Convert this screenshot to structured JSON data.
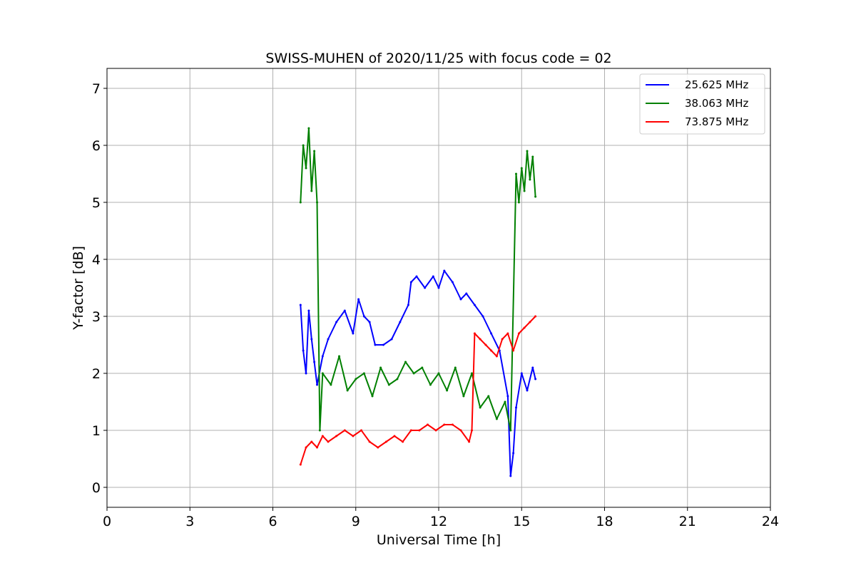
{
  "chart_data": {
    "type": "line",
    "title": "SWISS-MUHEN of 2020/11/25 with focus code = 02",
    "xlabel": "Universal Time [h]",
    "ylabel": "Y-factor [dB]",
    "xlim": [
      0,
      24
    ],
    "ylim": [
      -0.35,
      7.35
    ],
    "xticks": [
      0,
      3,
      6,
      9,
      12,
      15,
      18,
      21,
      24
    ],
    "yticks": [
      0,
      1,
      2,
      3,
      4,
      5,
      6,
      7
    ],
    "grid": true,
    "legend_position": "top-right",
    "series": [
      {
        "name": "25.625 MHz",
        "color": "#0000ff",
        "x": [
          7.0,
          7.1,
          7.2,
          7.3,
          7.4,
          7.5,
          7.6,
          7.8,
          8.0,
          8.3,
          8.6,
          8.9,
          9.1,
          9.3,
          9.5,
          9.7,
          10.0,
          10.3,
          10.6,
          10.9,
          11.0,
          11.2,
          11.5,
          11.8,
          12.0,
          12.2,
          12.5,
          12.8,
          13.0,
          13.3,
          13.6,
          13.9,
          14.2,
          14.5,
          14.6,
          14.7,
          14.8,
          15.0,
          15.2,
          15.4,
          15.5
        ],
        "values": [
          3.2,
          2.4,
          2.0,
          3.1,
          2.6,
          2.2,
          1.8,
          2.3,
          2.6,
          2.9,
          3.1,
          2.7,
          3.3,
          3.0,
          2.9,
          2.5,
          2.5,
          2.6,
          2.9,
          3.2,
          3.6,
          3.7,
          3.5,
          3.7,
          3.5,
          3.8,
          3.6,
          3.3,
          3.4,
          3.2,
          3.0,
          2.7,
          2.4,
          1.6,
          0.2,
          0.6,
          1.4,
          2.0,
          1.7,
          2.1,
          1.9
        ]
      },
      {
        "name": "38.063 MHz",
        "color": "#008000",
        "x": [
          7.0,
          7.1,
          7.2,
          7.3,
          7.4,
          7.5,
          7.6,
          7.7,
          7.8,
          8.1,
          8.4,
          8.7,
          9.0,
          9.3,
          9.6,
          9.9,
          10.2,
          10.5,
          10.8,
          11.1,
          11.4,
          11.7,
          12.0,
          12.3,
          12.6,
          12.9,
          13.2,
          13.5,
          13.8,
          14.1,
          14.4,
          14.6,
          14.8,
          14.9,
          15.0,
          15.1,
          15.2,
          15.3,
          15.4,
          15.5
        ],
        "values": [
          5.0,
          6.0,
          5.6,
          6.3,
          5.2,
          5.9,
          5.0,
          1.0,
          2.0,
          1.8,
          2.3,
          1.7,
          1.9,
          2.0,
          1.6,
          2.1,
          1.8,
          1.9,
          2.2,
          2.0,
          2.1,
          1.8,
          2.0,
          1.7,
          2.1,
          1.6,
          2.0,
          1.4,
          1.6,
          1.2,
          1.5,
          1.0,
          5.5,
          5.0,
          5.6,
          5.2,
          5.9,
          5.4,
          5.8,
          5.1
        ]
      },
      {
        "name": "73.875 MHz",
        "color": "#ff0000",
        "x": [
          7.0,
          7.2,
          7.4,
          7.6,
          7.8,
          8.0,
          8.3,
          8.6,
          8.9,
          9.2,
          9.5,
          9.8,
          10.1,
          10.4,
          10.7,
          11.0,
          11.3,
          11.6,
          11.9,
          12.2,
          12.5,
          12.8,
          13.1,
          13.2,
          13.3,
          13.5,
          13.7,
          13.9,
          14.1,
          14.3,
          14.5,
          14.7,
          14.9,
          15.1,
          15.3,
          15.5
        ],
        "values": [
          0.4,
          0.7,
          0.8,
          0.7,
          0.9,
          0.8,
          0.9,
          1.0,
          0.9,
          1.0,
          0.8,
          0.7,
          0.8,
          0.9,
          0.8,
          1.0,
          1.0,
          1.1,
          1.0,
          1.1,
          1.1,
          1.0,
          0.8,
          1.0,
          2.7,
          2.6,
          2.5,
          2.4,
          2.3,
          2.6,
          2.7,
          2.4,
          2.7,
          2.8,
          2.9,
          3.0
        ]
      }
    ]
  }
}
